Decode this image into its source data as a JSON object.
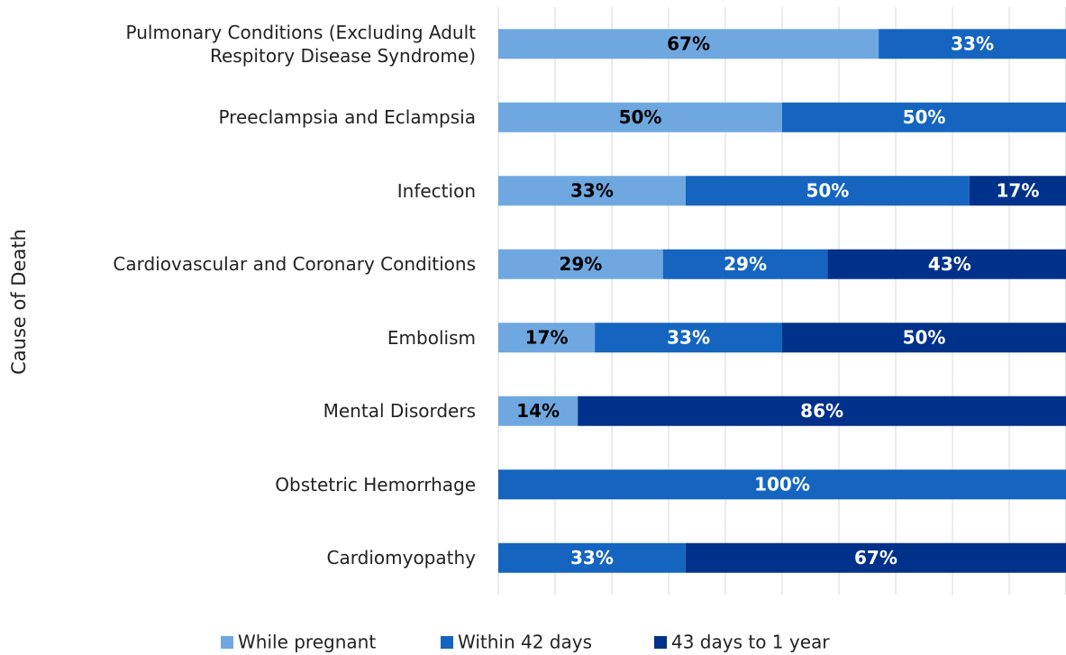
{
  "chart_data": {
    "type": "stacked_barh",
    "y_axis_label": "Cause of Death",
    "categories": [
      "Pulmonary Conditions (Excluding Adult\nRespitory Disease Syndrome)",
      "Preeclampsia and Eclampsia",
      "Infection",
      "Cardiovascular and Coronary Conditions",
      "Embolism",
      "Mental Disorders",
      "Obstetric Hemorrhage",
      "Cardiomyopathy"
    ],
    "series": [
      {
        "name": "While pregnant",
        "color": "#6fa8e0",
        "label_color": "#000000",
        "values": [
          67,
          50,
          33,
          29,
          17,
          14,
          null,
          null
        ],
        "value_labels": [
          "67%",
          "50%",
          "33%",
          "29%",
          "17%",
          "14%",
          null,
          null
        ]
      },
      {
        "name": "Within 42 days",
        "color": "#1565c0",
        "label_color": "#ffffff",
        "values": [
          33,
          50,
          50,
          29,
          33,
          null,
          100,
          33
        ],
        "value_labels": [
          "33%",
          "50%",
          "50%",
          "29%",
          "33%",
          null,
          "100%",
          "33%"
        ]
      },
      {
        "name": "43 days to 1 year",
        "color": "#00318a",
        "label_color": "#ffffff",
        "values": [
          null,
          null,
          17,
          43,
          50,
          86,
          null,
          67
        ],
        "value_labels": [
          null,
          null,
          "17%",
          "43%",
          "50%",
          "86%",
          null,
          "67%"
        ]
      }
    ],
    "xlim": [
      0,
      100
    ],
    "xticks": [
      0,
      10,
      20,
      30,
      40,
      50,
      60,
      70,
      80,
      90,
      100
    ],
    "grid": true,
    "legend": "bottom"
  }
}
